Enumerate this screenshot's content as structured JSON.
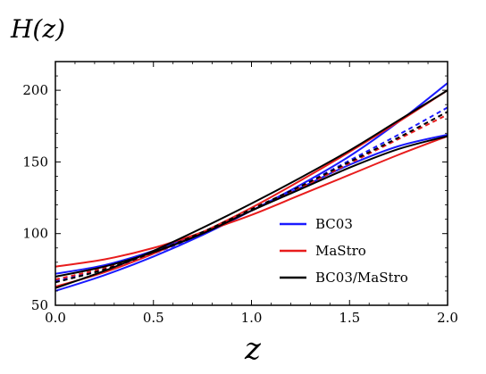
{
  "chart_data": {
    "type": "line",
    "ylabel": "H(z)",
    "xlabel": "z",
    "xlim": [
      0.0,
      2.0
    ],
    "ylim": [
      50,
      220
    ],
    "xticks": [
      0.0,
      0.5,
      1.0,
      1.5,
      2.0
    ],
    "xtick_labels": [
      "0.0",
      "0.5",
      "1.0",
      "1.5",
      "2.0"
    ],
    "yticks": [
      50,
      100,
      150,
      200
    ],
    "ytick_labels": [
      "50",
      "100",
      "150",
      "200"
    ],
    "grid": false,
    "legend_position": "lower-right",
    "legend": [
      {
        "label": "BC03",
        "color": "#1a1aff"
      },
      {
        "label": "MaStro",
        "color": "#e81c1c"
      },
      {
        "label": "BC03/MaStro",
        "color": "#000000"
      }
    ],
    "x": [
      0.0,
      0.25,
      0.5,
      0.75,
      1.0,
      1.25,
      1.5,
      1.75,
      2.0
    ],
    "series": [
      {
        "group": "BC03",
        "color": "#1a1aff",
        "style": "solid",
        "values": [
          60,
          71,
          84,
          99,
          116,
          134,
          154,
          178,
          205
        ]
      },
      {
        "group": "BC03",
        "color": "#1a1aff",
        "style": "solid",
        "values": [
          72,
          78,
          88,
          101,
          116,
          132,
          148,
          161,
          169
        ]
      },
      {
        "group": "BC03",
        "color": "#1a1aff",
        "style": "dashed",
        "values": [
          67,
          75,
          86,
          100,
          116,
          133,
          151,
          169,
          188
        ]
      },
      {
        "group": "MaStro",
        "color": "#e81c1c",
        "style": "solid",
        "values": [
          77,
          82,
          90,
          101,
          113,
          127,
          141,
          155,
          168
        ]
      },
      {
        "group": "MaStro",
        "color": "#e81c1c",
        "style": "solid",
        "values": [
          63,
          73,
          86,
          101,
          118,
          137,
          157,
          178,
          200
        ]
      },
      {
        "group": "MaStro",
        "color": "#e81c1c",
        "style": "dashed",
        "values": [
          68,
          76,
          87,
          101,
          116,
          132,
          149,
          166,
          183
        ]
      },
      {
        "group": "BC03/MaStro",
        "color": "#000000",
        "style": "solid",
        "values": [
          62,
          74,
          88,
          104,
          121,
          139,
          158,
          179,
          200
        ]
      },
      {
        "group": "BC03/MaStro",
        "color": "#000000",
        "style": "solid",
        "values": [
          70,
          77,
          87,
          100,
          116,
          131,
          146,
          159,
          168
        ]
      },
      {
        "group": "BC03/MaStro",
        "color": "#000000",
        "style": "dashed",
        "values": [
          66,
          75,
          87,
          101,
          117,
          133,
          150,
          167,
          185
        ]
      }
    ]
  }
}
